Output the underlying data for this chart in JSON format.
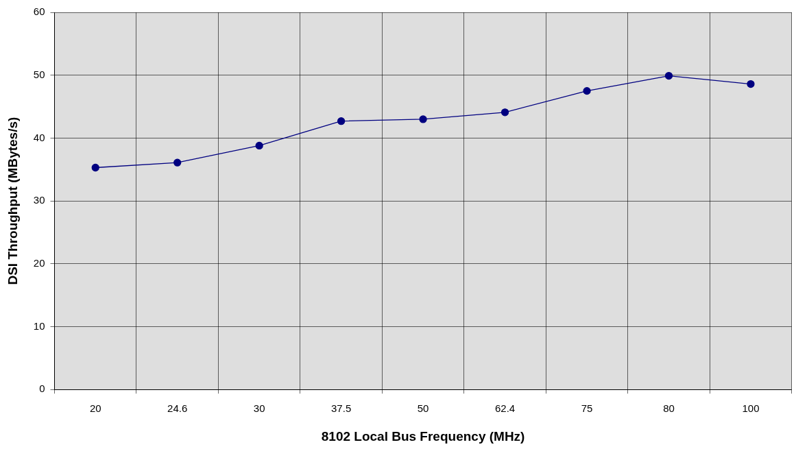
{
  "chart_data": {
    "type": "line",
    "xlabel": "8102 Local Bus Frequency (MHz)",
    "ylabel": "DSI Throughput (MBytes/s)",
    "categories": [
      "20",
      "24.6",
      "30",
      "37.5",
      "50",
      "62.4",
      "75",
      "80",
      "100"
    ],
    "series": [
      {
        "color": "#000080",
        "values": [
          35.3,
          36.1,
          38.8,
          42.7,
          43.0,
          44.1,
          47.5,
          49.9,
          48.6
        ]
      }
    ],
    "ylim": [
      0,
      60
    ],
    "yticks": [
      0,
      10,
      20,
      30,
      40,
      50,
      60
    ],
    "grid": true,
    "legend": false,
    "marker": "circle",
    "line_style": "solid"
  }
}
